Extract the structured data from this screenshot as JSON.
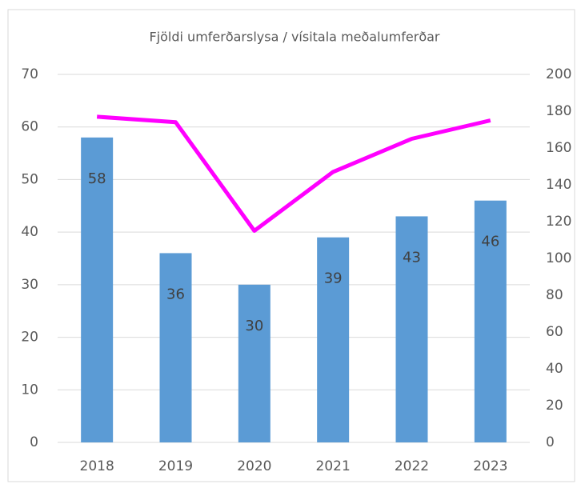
{
  "chart_data": {
    "type": "bar_line",
    "title": "Fjöldi umferðarslysa / vísitala meðalumferðar",
    "categories": [
      "2018",
      "2019",
      "2020",
      "2021",
      "2022",
      "2023"
    ],
    "series": [
      {
        "type": "bar",
        "color": "#5b9bd5",
        "values": [
          58,
          36,
          30,
          39,
          43,
          46
        ]
      },
      {
        "type": "line",
        "color": "#ff00ff",
        "axis": "y2",
        "values": [
          177,
          174,
          115,
          147,
          165,
          175
        ]
      }
    ],
    "ylim": [
      0,
      70
    ],
    "yticks": [
      0,
      10,
      20,
      30,
      40,
      50,
      60,
      70
    ],
    "y2lim": [
      0,
      200
    ],
    "y2ticks": [
      0,
      20,
      40,
      60,
      80,
      100,
      120,
      140,
      160,
      180,
      200
    ],
    "grid": true
  }
}
